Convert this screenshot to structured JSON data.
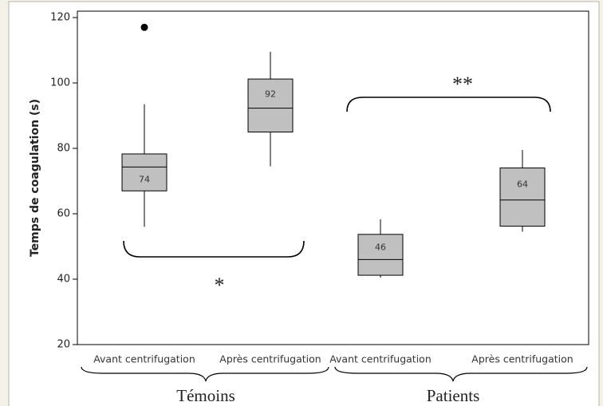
{
  "chart_data": {
    "type": "box",
    "y_label": "Temps de coagulation (s)",
    "categories": [
      "Avant centrifugation",
      "Après centrifugation",
      "Avant centrifugation",
      "Après centrifugation"
    ],
    "groups": [
      "Témoins",
      "Patients"
    ],
    "boxes": [
      {
        "whisker_low": 56,
        "q1": 67,
        "median": 74.3,
        "q3": 78.3,
        "whisker_high": 93.5,
        "outliers": [
          117
        ]
      },
      {
        "whisker_low": 74.5,
        "q1": 85,
        "median": 92.3,
        "q3": 101.2,
        "whisker_high": 109.5,
        "outliers": []
      },
      {
        "whisker_low": 40.5,
        "q1": 41.2,
        "median": 46,
        "q3": 53.7,
        "whisker_high": 58.3,
        "outliers": []
      },
      {
        "whisker_low": 54.5,
        "q1": 56.2,
        "median": 64.2,
        "q3": 74,
        "whisker_high": 79.5,
        "outliers": []
      }
    ],
    "value_labels": [
      "74",
      "92",
      "46",
      "64"
    ],
    "color": "#c0c0c0",
    "annotations": [
      "*",
      "**"
    ],
    "ylim": [
      20,
      120
    ],
    "yticks": [
      20,
      40,
      60,
      80,
      100,
      120
    ]
  }
}
